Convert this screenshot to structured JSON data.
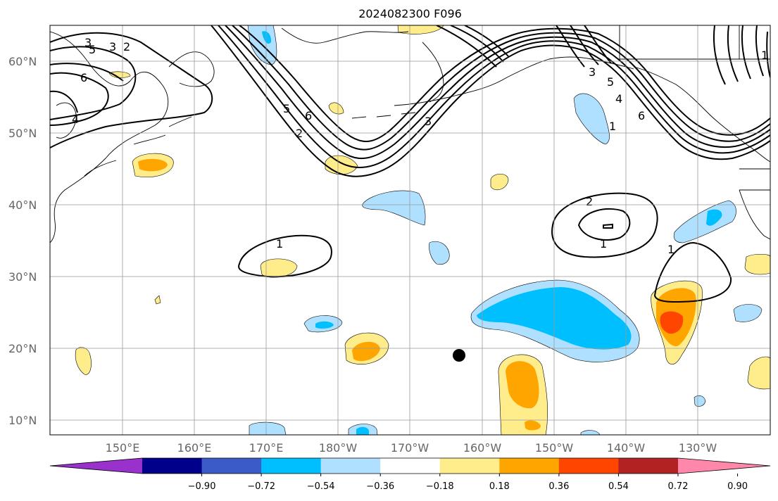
{
  "title": "2024082300 F096",
  "lat_labels": [
    "60°N",
    "50°N",
    "40°N",
    "30°N",
    "20°N",
    "10°N"
  ],
  "lon_labels": [
    "150°E",
    "160°E",
    "170°E",
    "180°W",
    "170°W",
    "160°W",
    "150°W",
    "140°W",
    "130°W"
  ],
  "colorbar": {
    "ticks": [
      "−0.90",
      "−0.72",
      "−0.54",
      "−0.36",
      "−0.18",
      "0.18",
      "0.36",
      "0.54",
      "0.72",
      "0.90"
    ],
    "colors": [
      "#9932cc",
      "#00008b",
      "#3a5bc8",
      "#00bfff",
      "#b0e0ff",
      "#ffffff",
      "#ffec8b",
      "#ffa500",
      "#ff4500",
      "#b22222",
      "#ff88aa"
    ]
  },
  "contour_labels": [
    "3",
    "5",
    "2",
    "3",
    "4",
    "6",
    "5",
    "2",
    "3",
    "6",
    "3",
    "5",
    "4",
    "6",
    "1",
    "1",
    "1",
    "2",
    "1",
    "1"
  ],
  "marker": "station-dot"
}
